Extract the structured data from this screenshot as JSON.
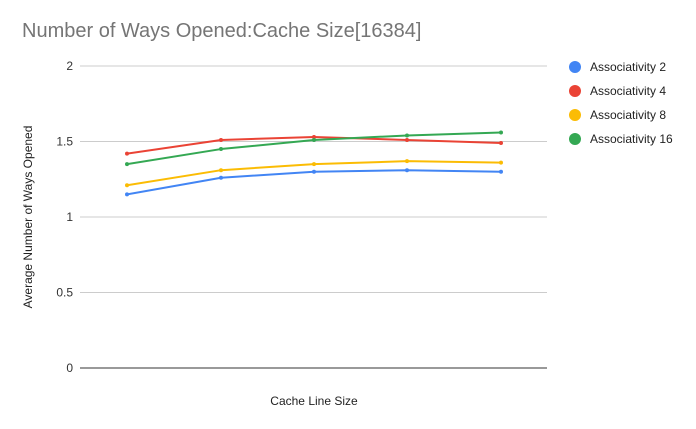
{
  "chart_data": {
    "type": "line",
    "title": "Number of Ways Opened:Cache Size[16384]",
    "xlabel": "Cache Line Size",
    "ylabel": "Average Number of Ways Opened",
    "x": [
      1,
      2,
      3,
      4,
      5
    ],
    "xtick_labels_shown": false,
    "ylim": [
      0,
      2
    ],
    "yticks": [
      "0",
      "0.5",
      "1",
      "1.5",
      "2"
    ],
    "ytick_values": [
      0,
      0.5,
      1,
      1.5,
      2
    ],
    "grid": true,
    "legend_position": "right",
    "series": [
      {
        "name": "Associativity 2",
        "color": "#4285f4",
        "values": [
          1.15,
          1.26,
          1.3,
          1.31,
          1.3
        ]
      },
      {
        "name": "Associativity 4",
        "color": "#ea4335",
        "values": [
          1.42,
          1.51,
          1.53,
          1.51,
          1.49
        ]
      },
      {
        "name": "Associativity 8",
        "color": "#fbbc04",
        "values": [
          1.21,
          1.31,
          1.35,
          1.37,
          1.36
        ]
      },
      {
        "name": "Associativity 16",
        "color": "#34a853",
        "values": [
          1.35,
          1.45,
          1.51,
          1.54,
          1.56
        ]
      }
    ]
  }
}
